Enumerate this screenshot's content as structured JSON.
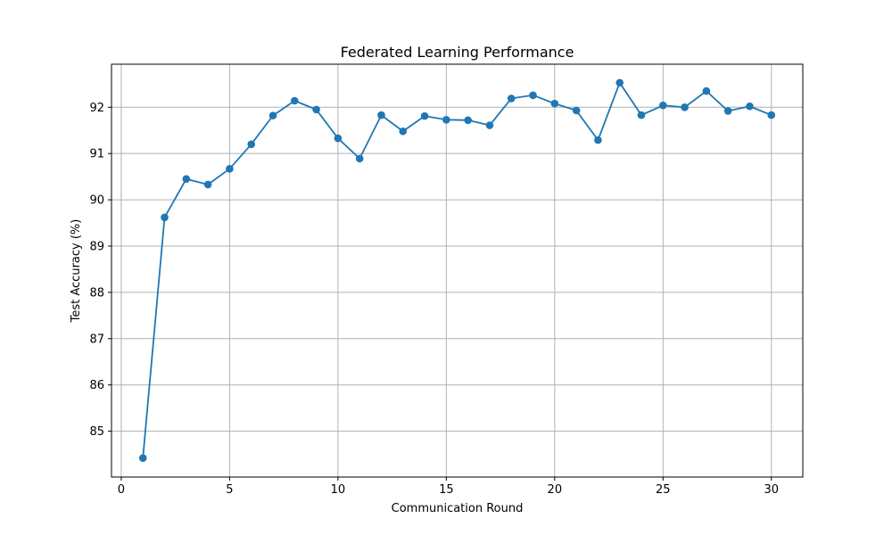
{
  "chart_data": {
    "type": "line",
    "title": "Federated Learning Performance",
    "xlabel": "Communication Round",
    "ylabel": "Test Accuracy (%)",
    "xlim": [
      -0.45,
      31.45
    ],
    "ylim": [
      84.01,
      92.93
    ],
    "xticks": [
      0,
      5,
      10,
      15,
      20,
      25,
      30
    ],
    "yticks": [
      85,
      86,
      87,
      88,
      89,
      90,
      91,
      92
    ],
    "grid": true,
    "legend": "none",
    "series": [
      {
        "color": "#1f77b4",
        "marker": "circle",
        "x": [
          1,
          2,
          3,
          4,
          5,
          6,
          7,
          8,
          9,
          10,
          11,
          12,
          13,
          14,
          15,
          16,
          17,
          18,
          19,
          20,
          21,
          22,
          23,
          24,
          25,
          26,
          27,
          28,
          29,
          30
        ],
        "values": [
          84.42,
          89.62,
          90.45,
          90.33,
          90.67,
          91.2,
          91.82,
          92.14,
          91.95,
          91.33,
          90.89,
          91.83,
          91.48,
          91.81,
          91.73,
          91.72,
          91.61,
          92.19,
          92.26,
          92.08,
          91.93,
          91.29,
          92.53,
          91.83,
          92.04,
          92.0,
          92.35,
          91.92,
          92.02,
          91.83
        ]
      }
    ]
  }
}
